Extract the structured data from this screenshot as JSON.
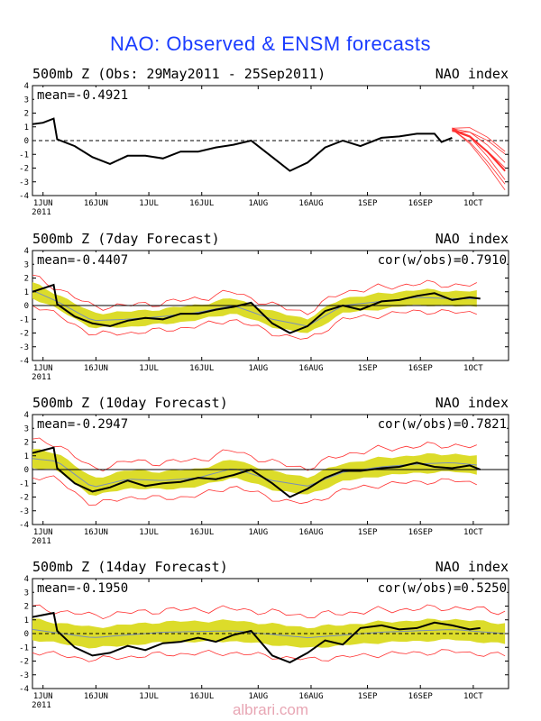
{
  "figure_title": "NAO: Observed & ENSM forecasts",
  "watermark": "albrari.com",
  "x_tick_labels": [
    "1JUN",
    "16JUN",
    "1JUL",
    "16JUL",
    "1AUG",
    "16AUG",
    "1SEP",
    "16SEP",
    "1OCT"
  ],
  "x_year_label": "2011",
  "y_tick_labels": [
    "4",
    "3",
    "2",
    "1",
    "0",
    "-1",
    "-2",
    "-3",
    "-4"
  ],
  "colors": {
    "title": "#1a3cff",
    "observed": "#000000",
    "ensemble_members": "#ff3030",
    "spread_band": "#dcdc2a",
    "ensemble_mean": "#7a8fb8",
    "zero_line": "#000000",
    "watermark": "#e8a6b4"
  },
  "chart_data": [
    {
      "type": "line",
      "title": "500mb Z (Obs: 29May2011 - 25Sep2011)",
      "right_label": "NAO index",
      "mean_text": "mean=-0.4921",
      "cor_text": "",
      "x_axis": "date, 1 Jun to 10 Oct 2011",
      "ylim": [
        -4,
        4
      ],
      "zero_line": "dashed",
      "series": [
        {
          "role": "observed",
          "x": [
            "2011-05-29",
            "2011-06-01",
            "2011-06-04",
            "2011-06-05",
            "2011-06-10",
            "2011-06-15",
            "2011-06-20",
            "2011-06-25",
            "2011-06-30",
            "2011-07-05",
            "2011-07-10",
            "2011-07-15",
            "2011-07-20",
            "2011-07-25",
            "2011-07-30",
            "2011-08-05",
            "2011-08-10",
            "2011-08-15",
            "2011-08-20",
            "2011-08-25",
            "2011-08-30",
            "2011-09-05",
            "2011-09-10",
            "2011-09-15",
            "2011-09-20",
            "2011-09-22",
            "2011-09-25"
          ],
          "y": [
            1.2,
            1.3,
            1.6,
            0.1,
            -0.4,
            -1.2,
            -1.7,
            -1.1,
            -1.1,
            -1.3,
            -0.8,
            -0.8,
            -0.5,
            -0.3,
            0.0,
            -1.2,
            -2.2,
            -1.6,
            -0.5,
            0.0,
            -0.4,
            0.2,
            0.3,
            0.5,
            0.5,
            -0.1,
            0.2
          ]
        },
        {
          "role": "ensemble_forecast",
          "x": [
            "2011-09-25",
            "2011-09-30",
            "2011-10-05",
            "2011-10-10"
          ],
          "y": [
            0.8,
            0.3,
            -0.8,
            -2.2
          ]
        }
      ]
    },
    {
      "type": "line",
      "title": "500mb Z (7day Forecast)",
      "right_label": "NAO index",
      "mean_text": "mean=-0.4407",
      "cor_text": "cor(w/obs)=0.7910",
      "x_axis": "date, 1 Jun to 10 Oct 2011",
      "ylim": [
        -4,
        4
      ],
      "zero_line": "solid",
      "series": [
        {
          "role": "observed",
          "x": [
            "2011-05-29",
            "2011-06-04",
            "2011-06-05",
            "2011-06-10",
            "2011-06-15",
            "2011-06-20",
            "2011-06-25",
            "2011-06-30",
            "2011-07-05",
            "2011-07-10",
            "2011-07-15",
            "2011-07-20",
            "2011-07-25",
            "2011-07-30",
            "2011-08-05",
            "2011-08-10",
            "2011-08-15",
            "2011-08-20",
            "2011-08-25",
            "2011-08-30",
            "2011-09-05",
            "2011-09-10",
            "2011-09-15",
            "2011-09-20",
            "2011-09-25",
            "2011-09-30",
            "2011-10-03"
          ],
          "y": [
            1.0,
            1.5,
            0.1,
            -0.8,
            -1.3,
            -1.5,
            -1.1,
            -0.9,
            -1.0,
            -0.6,
            -0.6,
            -0.3,
            -0.1,
            0.2,
            -1.3,
            -2.0,
            -1.5,
            -0.4,
            0.0,
            -0.3,
            0.3,
            0.4,
            0.7,
            0.9,
            0.4,
            0.6,
            0.5
          ]
        },
        {
          "role": "ensemble_mean",
          "x": [
            "2011-05-29",
            "2011-06-05",
            "2011-06-15",
            "2011-06-25",
            "2011-07-05",
            "2011-07-15",
            "2011-07-25",
            "2011-08-05",
            "2011-08-15",
            "2011-08-25",
            "2011-09-05",
            "2011-09-15",
            "2011-09-25",
            "2011-10-03"
          ],
          "y": [
            1.1,
            0.3,
            -1.1,
            -1.0,
            -0.8,
            -0.5,
            0.0,
            -1.0,
            -1.5,
            0.0,
            0.3,
            0.6,
            0.5,
            0.5
          ]
        },
        {
          "role": "spread_half_width",
          "value": 0.55
        },
        {
          "role": "ensemble_extremes_half_width",
          "value": 1.0
        }
      ]
    },
    {
      "type": "line",
      "title": "500mb Z (10day Forecast)",
      "right_label": "NAO index",
      "mean_text": "mean=-0.2947",
      "cor_text": "cor(w/obs)=0.7821",
      "x_axis": "date, 1 Jun to 10 Oct 2011",
      "ylim": [
        -4,
        4
      ],
      "zero_line": "solid",
      "series": [
        {
          "role": "observed",
          "x": [
            "2011-05-29",
            "2011-06-04",
            "2011-06-05",
            "2011-06-10",
            "2011-06-15",
            "2011-06-20",
            "2011-06-25",
            "2011-06-30",
            "2011-07-05",
            "2011-07-10",
            "2011-07-15",
            "2011-07-20",
            "2011-07-25",
            "2011-07-30",
            "2011-08-05",
            "2011-08-10",
            "2011-08-15",
            "2011-08-20",
            "2011-08-25",
            "2011-08-30",
            "2011-09-05",
            "2011-09-10",
            "2011-09-15",
            "2011-09-20",
            "2011-09-25",
            "2011-09-30",
            "2011-10-03"
          ],
          "y": [
            1.2,
            1.6,
            0.1,
            -1.0,
            -1.6,
            -1.3,
            -0.8,
            -1.2,
            -1.0,
            -0.9,
            -0.6,
            -0.7,
            -0.4,
            0.0,
            -1.0,
            -2.0,
            -1.4,
            -0.6,
            -0.1,
            -0.1,
            0.1,
            0.2,
            0.5,
            0.2,
            0.1,
            0.3,
            0.0
          ]
        },
        {
          "role": "ensemble_mean",
          "x": [
            "2011-05-29",
            "2011-06-05",
            "2011-06-15",
            "2011-06-25",
            "2011-07-05",
            "2011-07-15",
            "2011-07-25",
            "2011-08-05",
            "2011-08-15",
            "2011-08-25",
            "2011-09-05",
            "2011-09-15",
            "2011-09-25",
            "2011-10-03"
          ],
          "y": [
            0.8,
            0.6,
            -1.3,
            -0.7,
            -0.8,
            -0.6,
            0.1,
            -0.8,
            -1.2,
            -0.2,
            0.2,
            0.4,
            0.5,
            0.3
          ]
        },
        {
          "role": "spread_half_width",
          "value": 0.65
        },
        {
          "role": "ensemble_extremes_half_width",
          "value": 1.3
        }
      ]
    },
    {
      "type": "line",
      "title": "500mb Z (14day Forecast)",
      "right_label": "NAO index",
      "mean_text": "mean=-0.1950",
      "cor_text": "cor(w/obs)=0.5250",
      "x_axis": "date, 1 Jun to 10 Oct 2011",
      "ylim": [
        -4,
        4
      ],
      "zero_line": "dashed",
      "series": [
        {
          "role": "observed",
          "x": [
            "2011-05-29",
            "2011-06-04",
            "2011-06-05",
            "2011-06-10",
            "2011-06-15",
            "2011-06-20",
            "2011-06-25",
            "2011-06-30",
            "2011-07-05",
            "2011-07-10",
            "2011-07-15",
            "2011-07-20",
            "2011-07-25",
            "2011-07-30",
            "2011-08-05",
            "2011-08-10",
            "2011-08-15",
            "2011-08-20",
            "2011-08-25",
            "2011-08-30",
            "2011-09-05",
            "2011-09-10",
            "2011-09-15",
            "2011-09-20",
            "2011-09-25",
            "2011-09-30",
            "2011-10-03"
          ],
          "y": [
            1.2,
            1.5,
            0.2,
            -1.0,
            -1.6,
            -1.4,
            -0.9,
            -1.2,
            -0.7,
            -0.6,
            -0.3,
            -0.6,
            -0.1,
            0.2,
            -1.6,
            -2.1,
            -1.4,
            -0.5,
            -0.8,
            0.4,
            0.6,
            0.3,
            0.4,
            0.8,
            0.6,
            0.3,
            0.4
          ]
        },
        {
          "role": "ensemble_mean",
          "x": [
            "2011-05-29",
            "2011-06-15",
            "2011-07-05",
            "2011-07-25",
            "2011-08-15",
            "2011-09-05",
            "2011-09-25",
            "2011-10-10"
          ],
          "y": [
            0.3,
            -0.3,
            0.1,
            0.2,
            -0.3,
            0.1,
            0.3,
            0.0
          ]
        },
        {
          "role": "spread_half_width",
          "value": 0.75
        },
        {
          "role": "ensemble_extremes_half_width",
          "value": 1.6
        }
      ]
    }
  ]
}
